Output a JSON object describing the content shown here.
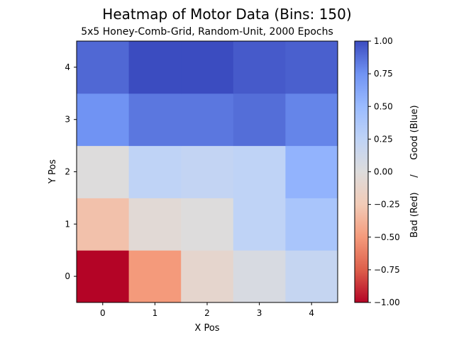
{
  "chart_data": {
    "type": "heatmap",
    "title": "Heatmap of Motor Data (Bins: 150)",
    "subtitle": "5x5 Honey-Comb-Grid, Random-Unit, 2000 Epochs",
    "xlabel": "X Pos",
    "ylabel": "Y Pos",
    "x_ticks": [
      "0",
      "1",
      "2",
      "3",
      "4"
    ],
    "y_ticks": [
      "0",
      "1",
      "2",
      "3",
      "4"
    ],
    "colorbar": {
      "label": "Bad (Red)     /     Good (Blue)",
      "vmin": -1.0,
      "vmax": 1.0,
      "ticks": [
        "−1.00",
        "−0.75",
        "−0.50",
        "−0.25",
        "0.00",
        "0.25",
        "0.50",
        "0.75",
        "1.00"
      ],
      "colormap": "coolwarm_reversed"
    },
    "values": [
      [
        -1.0,
        -0.5,
        -0.1,
        0.05,
        0.2
      ],
      [
        -0.3,
        -0.05,
        0.0,
        0.25,
        0.4
      ],
      [
        0.0,
        0.25,
        0.22,
        0.25,
        0.55
      ],
      [
        0.75,
        0.85,
        0.85,
        0.88,
        0.8
      ],
      [
        0.9,
        1.0,
        1.0,
        0.95,
        0.93
      ]
    ]
  }
}
